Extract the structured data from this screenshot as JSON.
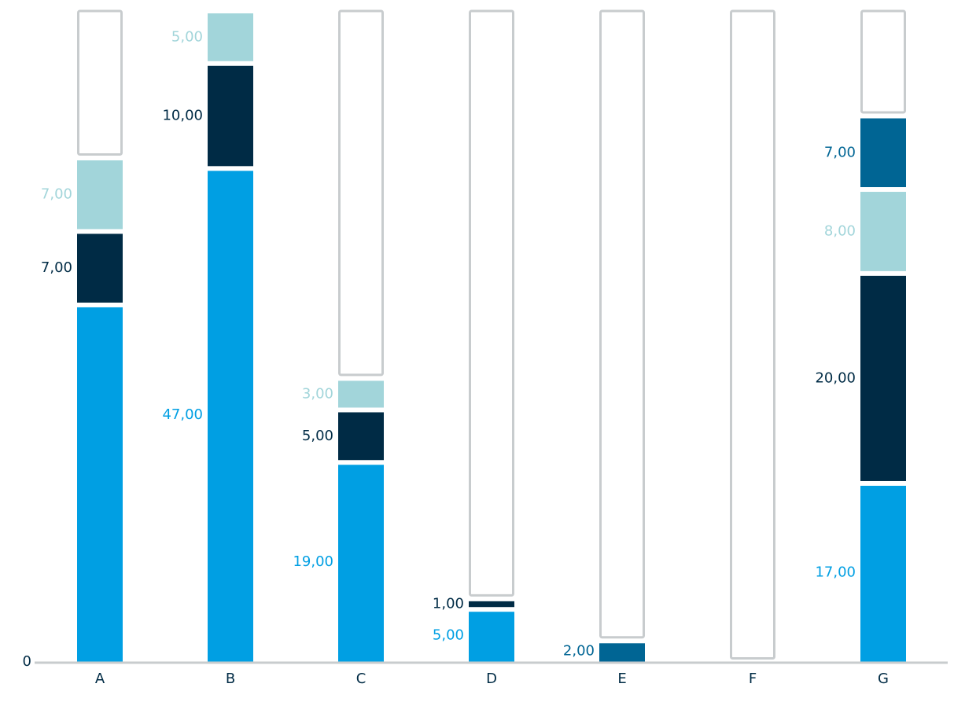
{
  "chart_data": {
    "type": "stacked-bar",
    "categories": [
      "A",
      "B",
      "C",
      "D",
      "E",
      "F",
      "G"
    ],
    "series": [
      {
        "color": "#009fe3",
        "values": [
          34,
          47,
          19,
          5,
          null,
          null,
          17
        ],
        "value_labels": [
          null,
          "47,00",
          "19,00",
          "5,00",
          null,
          null,
          "17,00"
        ]
      },
      {
        "color": "#002b45",
        "values": [
          7,
          10,
          5,
          1,
          null,
          null,
          20
        ],
        "value_labels": [
          "7,00",
          "10,00",
          "5,00",
          "1,00",
          null,
          null,
          "20,00"
        ]
      },
      {
        "color": "#a2d5da",
        "values": [
          7,
          5,
          3,
          null,
          null,
          null,
          8
        ],
        "value_labels": [
          "7,00",
          "5,00",
          "3,00",
          null,
          null,
          null,
          "8,00"
        ]
      },
      {
        "color": "#006594",
        "values": [
          null,
          null,
          null,
          null,
          2,
          null,
          7
        ],
        "value_labels": [
          null,
          null,
          null,
          null,
          "2,00",
          null,
          "7,00"
        ]
      }
    ],
    "ylim": [
      0,
      62
    ],
    "yticks": [
      0
    ],
    "grid": false
  }
}
